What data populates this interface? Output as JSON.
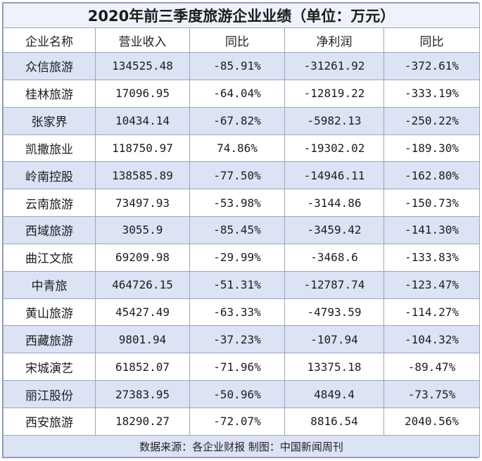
{
  "table": {
    "title": "2020年前三季度旅游企业业绩（单位：万元）",
    "columns": [
      "企业名称",
      "营业收入",
      "同比",
      "净利润",
      "同比"
    ],
    "rows": [
      [
        "众信旅游",
        "134525.48",
        "-85.91%",
        "-31261.92",
        "-372.61%"
      ],
      [
        "桂林旅游",
        "17096.95",
        "-64.04%",
        "-12819.22",
        "-333.19%"
      ],
      [
        "张家界",
        "10434.14",
        "-67.82%",
        "-5982.13",
        "-250.22%"
      ],
      [
        "凯撒旅业",
        "118750.97",
        "74.86%",
        "-19302.02",
        "-189.30%"
      ],
      [
        "岭南控股",
        "138585.89",
        "-77.50%",
        "-14946.11",
        "-162.80%"
      ],
      [
        "云南旅游",
        "73497.93",
        "-53.98%",
        "-3144.86",
        "-150.73%"
      ],
      [
        "西域旅游",
        "3055.9",
        "-85.45%",
        "-3459.42",
        "-141.30%"
      ],
      [
        "曲江文旅",
        "69209.98",
        "-29.99%",
        "-3468.6",
        "-133.83%"
      ],
      [
        "中青旅",
        "464726.15",
        "-51.31%",
        "-12787.74",
        "-123.47%"
      ],
      [
        "黄山旅游",
        "45427.49",
        "-63.33%",
        "-4793.59",
        "-114.27%"
      ],
      [
        "西藏旅游",
        "9801.94",
        "-37.23%",
        "-107.94",
        "-104.32%"
      ],
      [
        "宋城演艺",
        "61852.07",
        "-71.96%",
        "13375.18",
        "-89.47%"
      ],
      [
        "丽江股份",
        "27383.95",
        "-50.96%",
        "4849.4",
        "-73.75%"
      ],
      [
        "西安旅游",
        "18290.27",
        "-72.07%",
        "8816.54",
        "2040.56%"
      ]
    ],
    "footer": "数据来源：各企业财报  制图：中国新闻周刊"
  },
  "colors": {
    "band": "#dbe3f5",
    "border": "#9aa6b8",
    "title_bg": "#eef2fb"
  }
}
